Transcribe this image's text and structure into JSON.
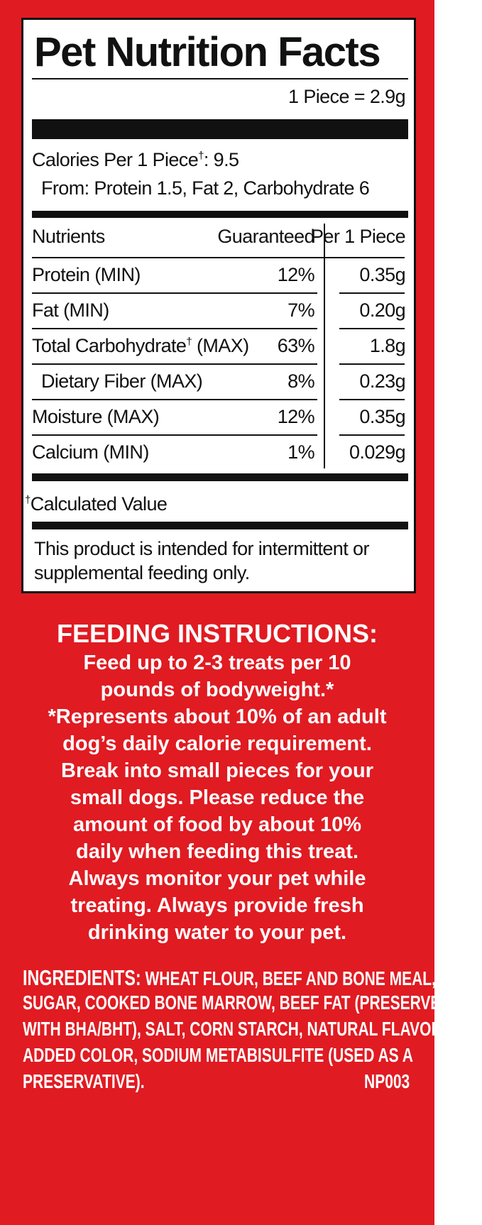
{
  "label": {
    "title": "Pet Nutrition Facts",
    "serving": "1 Piece = 2.9g",
    "calories": {
      "text": "Calories Per 1 Piece",
      "note": "†",
      "value": ": 9.5"
    },
    "from": "From: Protein 1.5, Fat 2, Carbohydrate 6",
    "header": [
      "Nutrients",
      "Guaranteed",
      "Per 1 Piece"
    ],
    "rows": [
      {
        "nutrient": "Protein",
        "qualifier": "(MIN)",
        "guaranteed": "12%",
        "per_piece": "0.35g"
      },
      {
        "nutrient": "Fat",
        "qualifier": "(MIN)",
        "guaranteed": "7%",
        "per_piece": "0.20g"
      },
      {
        "nutrient": "Total Carbohydrate",
        "note": "†",
        "qualifier": "(MAX)",
        "guaranteed": "63%",
        "per_piece": "1.8g"
      },
      {
        "nutrient": "Dietary Fiber",
        "qualifier": "(MAX)",
        "guaranteed": "8%",
        "per_piece": "0.23g"
      },
      {
        "nutrient": "Moisture",
        "qualifier": "(MAX)",
        "guaranteed": "12%",
        "per_piece": "0.35g"
      },
      {
        "nutrient": "Calcium",
        "qualifier": "(MIN)",
        "guaranteed": "1%",
        "per_piece": "0.029g"
      }
    ],
    "footnote": {
      "note": "†",
      "text": "Calculated Value"
    },
    "disclaimer": [
      "This product is intended for intermittent or",
      "supplemental feeding only."
    ]
  },
  "feeding": {
    "title": "FEEDING INSTRUCTIONS:",
    "lines": [
      "Feed up to 2-3 treats per 10",
      "pounds of bodyweight.*",
      "*Represents about 10% of an adult",
      "dog’s daily calorie requirement.",
      "Break into small pieces for your",
      "small dogs. Please reduce the",
      "amount of food by about 10%",
      "daily when feeding this treat.",
      "Always monitor your pet while",
      "treating. Always provide fresh",
      "drinking water to your pet."
    ]
  },
  "ingredients": {
    "label": "INGREDIENTS:",
    "lines": [
      "WHEAT FLOUR, BEEF AND BONE MEAL,",
      "SUGAR, COOKED BONE MARROW, BEEF FAT (PRESERVED",
      "WITH BHA/BHT), SALT, CORN STARCH, NATURAL FLAVOR,",
      "ADDED COLOR, SODIUM METABISULFITE (USED AS A",
      "PRESERVATIVE)."
    ],
    "code": "NP003"
  }
}
